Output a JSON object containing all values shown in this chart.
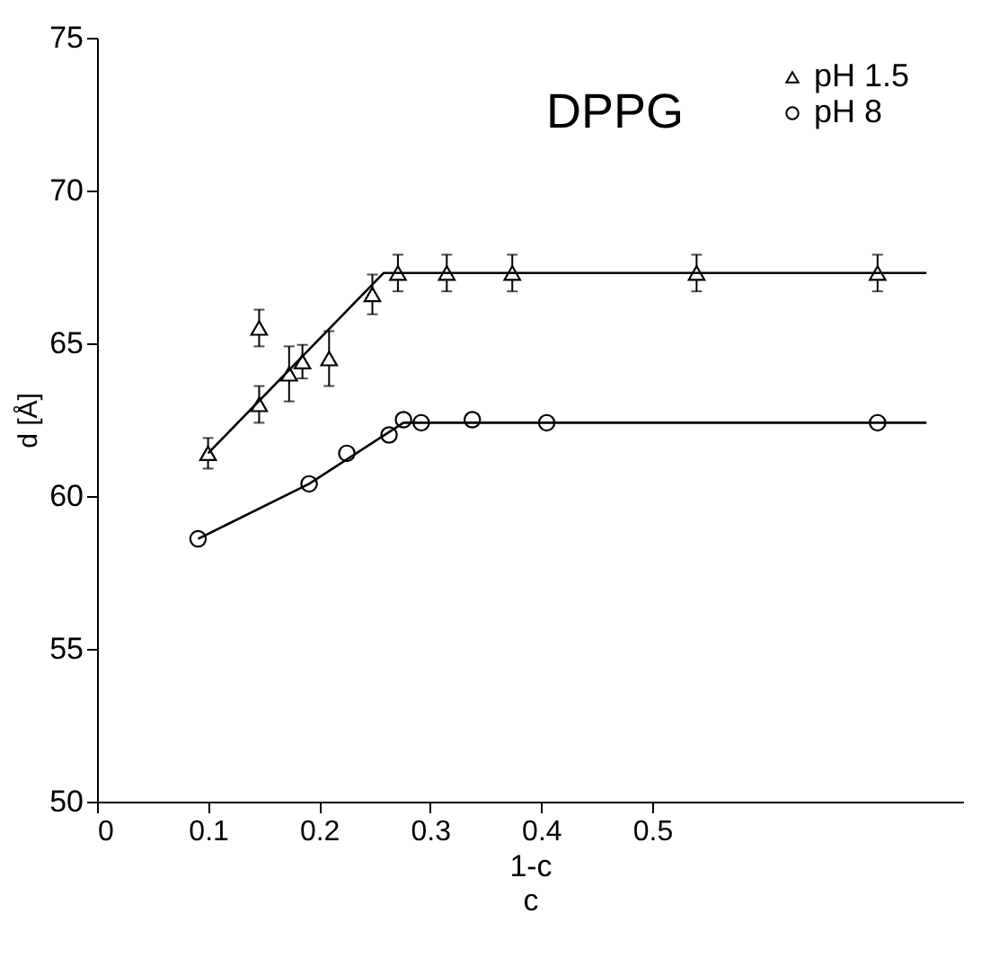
{
  "chart_data": {
    "type": "scatter",
    "xlabel": "1-c\nc",
    "ylabel": "d [Å]",
    "annotations": [
      "DPPG"
    ],
    "xlim": [
      0,
      0.78
    ],
    "ylim": [
      50,
      75
    ],
    "xticks": [
      0,
      0.1,
      0.2,
      0.3,
      0.4,
      0.5
    ],
    "yticks": [
      50,
      55,
      60,
      65,
      70,
      75
    ],
    "grid": false,
    "legend": "top right",
    "series": [
      {
        "name": "pH 1.5",
        "color": "#000000",
        "marker": "triangle",
        "x": [
          0.1,
          0.146,
          0.146,
          0.173,
          0.185,
          0.209,
          0.248,
          0.271,
          0.315,
          0.374,
          0.54,
          0.703
        ],
        "values": [
          61.4,
          63.0,
          65.5,
          64.0,
          64.4,
          64.5,
          66.6,
          67.3,
          67.3,
          67.3,
          67.3,
          67.3
        ],
        "errors": [
          0.5,
          0.6,
          0.6,
          0.9,
          0.55,
          0.9,
          0.65,
          0.6,
          0.6,
          0.6,
          0.6,
          0.6
        ]
      },
      {
        "name": "pH 8",
        "color": "#000000",
        "marker": "circle",
        "x": [
          0.091,
          0.191,
          0.225,
          0.263,
          0.276,
          0.292,
          0.338,
          0.405,
          0.703
        ],
        "values": [
          58.6,
          60.4,
          61.4,
          62.0,
          62.5,
          62.4,
          62.5,
          62.4,
          62.4
        ]
      },
      {
        "type": "line",
        "color": "#000000",
        "marker": "none",
        "x": [
          0.1,
          0.258,
          0.747
        ],
        "values": [
          61.4,
          67.3,
          67.3
        ]
      },
      {
        "type": "line",
        "color": "#000000",
        "marker": "none",
        "x": [
          0.091,
          0.191,
          0.276,
          0.747
        ],
        "values": [
          58.6,
          60.4,
          62.4,
          62.4
        ]
      }
    ]
  }
}
